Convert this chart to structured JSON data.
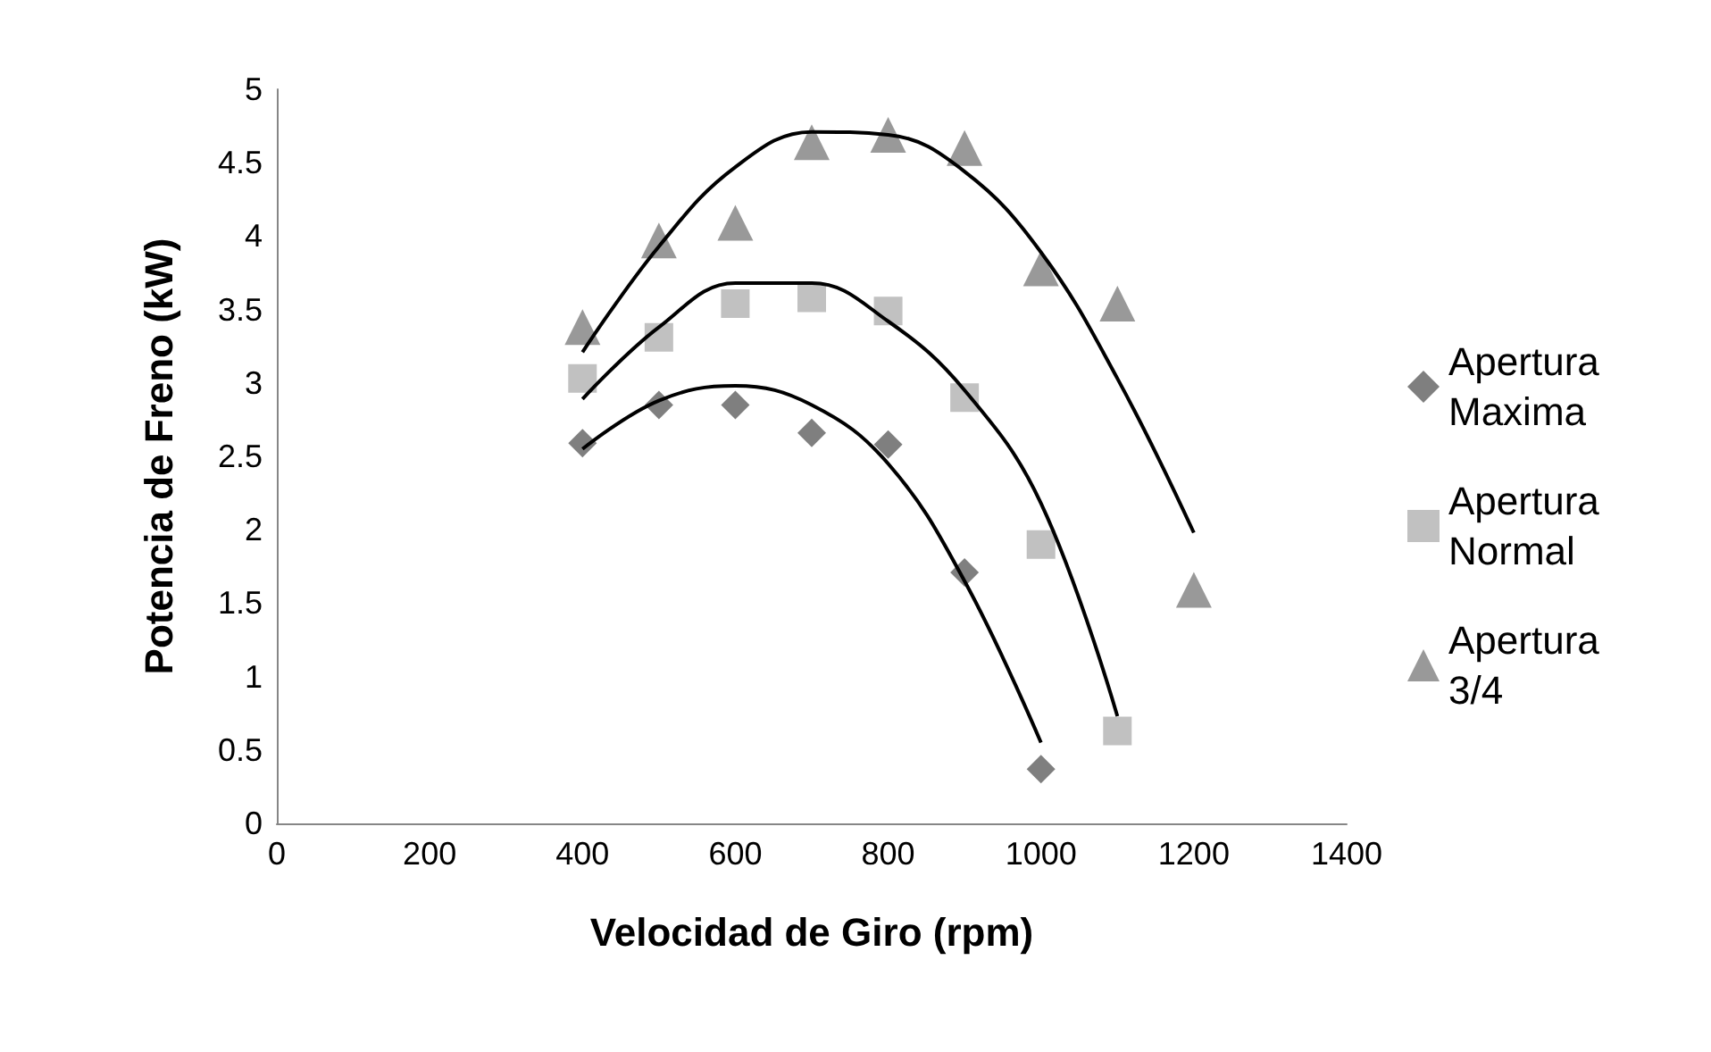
{
  "chart_data": {
    "type": "scatter",
    "xlabel": "Velocidad de Giro (rpm)",
    "ylabel": "Potencia de Freno (kW)",
    "xlim": [
      0,
      1400
    ],
    "xticks": [
      0,
      200,
      400,
      600,
      800,
      1000,
      1200,
      1400
    ],
    "ylim": [
      0,
      5
    ],
    "yticks": [
      0,
      0.5,
      1,
      1.5,
      2,
      2.5,
      3,
      3.5,
      4,
      4.5,
      5
    ],
    "grid": false,
    "legend": "right",
    "series": [
      {
        "name": "Apertura Maxima",
        "color": "#5f5f5f",
        "marker": "diamond",
        "x": [
          400,
          500,
          600,
          700,
          800,
          900,
          1000
        ],
        "values": [
          2.59,
          2.85,
          2.85,
          2.66,
          2.58,
          1.71,
          0.37
        ]
      },
      {
        "name": "Apertura Normal",
        "color": "#b2b2b2",
        "marker": "square",
        "x": [
          400,
          500,
          600,
          700,
          800,
          900,
          1000,
          1100
        ],
        "values": [
          3.03,
          3.31,
          3.54,
          3.58,
          3.49,
          2.9,
          1.9,
          0.63
        ]
      },
      {
        "name": "Apertura 3/4",
        "color": "#808080",
        "marker": "triangle",
        "x": [
          400,
          500,
          600,
          700,
          800,
          900,
          1000,
          1100,
          1200
        ],
        "values": [
          3.38,
          3.97,
          4.09,
          4.64,
          4.69,
          4.6,
          3.78,
          3.54,
          1.59
        ]
      },
      {
        "type": "line",
        "color": "#000000",
        "marker": "none",
        "line_style": "solid",
        "x": [
          400,
          500,
          600,
          700,
          800,
          900,
          1000
        ],
        "values": [
          2.55,
          2.88,
          2.98,
          2.85,
          2.45,
          1.65,
          0.55
        ]
      },
      {
        "type": "line",
        "color": "#000000",
        "marker": "none",
        "line_style": "solid",
        "x": [
          400,
          500,
          600,
          700,
          800,
          900,
          1000,
          1100
        ],
        "values": [
          2.89,
          3.38,
          3.68,
          3.68,
          3.42,
          2.95,
          2.18,
          0.73
        ]
      },
      {
        "type": "line",
        "color": "#000000",
        "marker": "none",
        "line_style": "solid",
        "x": [
          400,
          500,
          600,
          700,
          800,
          900,
          1000,
          1100,
          1200
        ],
        "values": [
          3.21,
          3.93,
          4.47,
          4.71,
          4.69,
          4.44,
          3.89,
          3.03,
          1.98
        ]
      }
    ]
  }
}
